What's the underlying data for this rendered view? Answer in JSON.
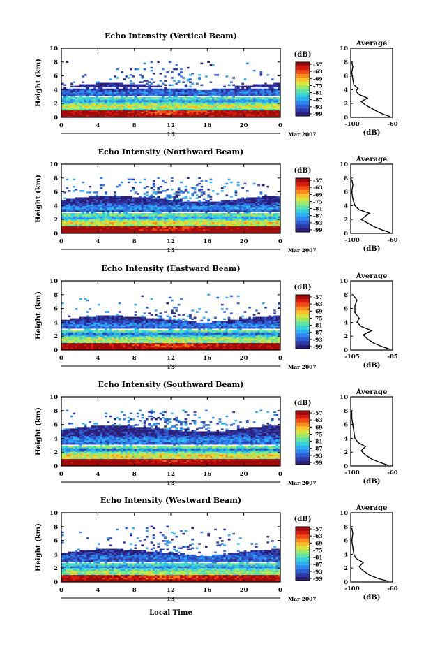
{
  "footer": {
    "xlabel": "Local Time"
  },
  "date_labels": {
    "day": "13",
    "month_year": "Mar 2007"
  },
  "colorbar": {
    "unit": "(dB)",
    "ticks": [
      "-57",
      "-63",
      "-69",
      "-75",
      "-81",
      "-87",
      "-93",
      "-99"
    ],
    "colors": [
      "#2b1f77",
      "#2e3aa8",
      "#2f5fd4",
      "#2e86ee",
      "#2cb0f2",
      "#35d2d8",
      "#5fe3a6",
      "#9ae86c",
      "#d6e43d",
      "#f9c02a",
      "#fb8a1e",
      "#f24b14",
      "#d61a10",
      "#a00c0c"
    ]
  },
  "chart_data": [
    {
      "type": "heatmap",
      "title": "Echo Intensity (Vertical Beam)",
      "xlabel": "",
      "ylabel": "Height (km)",
      "x_ticks": [
        "0",
        "4",
        "8",
        "12",
        "16",
        "20",
        "0"
      ],
      "y_ticks": [
        "0",
        "2",
        "4",
        "6",
        "8",
        "10"
      ],
      "xlim": [
        0,
        24
      ],
      "ylim": [
        0,
        10
      ],
      "value_unit": "(dB)",
      "value_range": [
        -99,
        -57
      ],
      "profile": {
        "title": "Average",
        "xlabel": "(dB)",
        "x_ticks": [
          "-100",
          "-60"
        ],
        "y_ticks": [
          "0",
          "2",
          "4",
          "6",
          "8",
          "10"
        ],
        "xlim": [
          -100,
          -60
        ],
        "ylim": [
          0,
          10
        ],
        "points": [
          [
            -62,
            0.1
          ],
          [
            -68,
            0.4
          ],
          [
            -74,
            0.8
          ],
          [
            -80,
            1.3
          ],
          [
            -86,
            1.8
          ],
          [
            -90,
            2.3
          ],
          [
            -84,
            2.8
          ],
          [
            -92,
            3.3
          ],
          [
            -95,
            3.8
          ],
          [
            -93,
            4.2
          ],
          [
            -97,
            4.7
          ],
          [
            -98,
            5.5
          ],
          [
            -99,
            6.5
          ],
          [
            -98,
            7.3
          ],
          [
            -99,
            8.0
          ]
        ]
      }
    },
    {
      "type": "heatmap",
      "title": "Echo Intensity (Northward Beam)",
      "xlabel": "",
      "ylabel": "Height (km)",
      "x_ticks": [
        "0",
        "4",
        "8",
        "12",
        "16",
        "20",
        "0"
      ],
      "y_ticks": [
        "0",
        "2",
        "4",
        "6",
        "8",
        "10"
      ],
      "xlim": [
        0,
        24
      ],
      "ylim": [
        0,
        10
      ],
      "value_unit": "(dB)",
      "value_range": [
        -99,
        -57
      ],
      "profile": {
        "title": "Average",
        "xlabel": "(dB)",
        "x_ticks": [
          "-100",
          "-60"
        ],
        "y_ticks": [
          "0",
          "2",
          "4",
          "6",
          "8",
          "10"
        ],
        "xlim": [
          -100,
          -60
        ],
        "ylim": [
          0,
          10
        ],
        "points": [
          [
            -62,
            0.1
          ],
          [
            -70,
            0.5
          ],
          [
            -78,
            1.0
          ],
          [
            -84,
            1.5
          ],
          [
            -90,
            2.0
          ],
          [
            -86,
            2.5
          ],
          [
            -82,
            2.9
          ],
          [
            -92,
            3.4
          ],
          [
            -96,
            4.0
          ],
          [
            -98,
            5.0
          ],
          [
            -99,
            6.0
          ],
          [
            -98,
            7.0
          ],
          [
            -99,
            7.8
          ]
        ]
      }
    },
    {
      "type": "heatmap",
      "title": "Echo Intensity (Eastward Beam)",
      "xlabel": "",
      "ylabel": "Height (km)",
      "x_ticks": [
        "0",
        "4",
        "8",
        "12",
        "16",
        "20",
        "0"
      ],
      "y_ticks": [
        "0",
        "2",
        "4",
        "6",
        "8",
        "10"
      ],
      "xlim": [
        0,
        24
      ],
      "ylim": [
        0,
        10
      ],
      "value_unit": "(dB)",
      "value_range": [
        -99,
        -57
      ],
      "profile": {
        "title": "Average",
        "xlabel": "(dB)",
        "x_ticks": [
          "-105",
          "-85"
        ],
        "y_ticks": [
          "0",
          "2",
          "4",
          "6",
          "8",
          "10"
        ],
        "xlim": [
          -105,
          -85
        ],
        "ylim": [
          0,
          10
        ],
        "points": [
          [
            -86,
            0.1
          ],
          [
            -90,
            0.5
          ],
          [
            -94,
            1.0
          ],
          [
            -97,
            1.6
          ],
          [
            -99,
            2.2
          ],
          [
            -95,
            2.8
          ],
          [
            -100,
            3.4
          ],
          [
            -102,
            4.0
          ],
          [
            -101,
            4.6
          ],
          [
            -103,
            5.4
          ],
          [
            -103,
            6.4
          ],
          [
            -102,
            7.2
          ],
          [
            -104,
            8.0
          ]
        ]
      }
    },
    {
      "type": "heatmap",
      "title": "Echo Intensity (Southward Beam)",
      "xlabel": "",
      "ylabel": "Height (km)",
      "x_ticks": [
        "0",
        "4",
        "8",
        "12",
        "16",
        "20",
        "0"
      ],
      "y_ticks": [
        "0",
        "2",
        "4",
        "6",
        "8",
        "10"
      ],
      "xlim": [
        0,
        24
      ],
      "ylim": [
        0,
        10
      ],
      "value_unit": "(dB)",
      "value_range": [
        -99,
        -57
      ],
      "profile": {
        "title": "Average",
        "xlabel": "(dB)",
        "x_ticks": [
          "-100",
          "-60"
        ],
        "y_ticks": [
          "0",
          "2",
          "4",
          "6",
          "8",
          "10"
        ],
        "xlim": [
          -100,
          -60
        ],
        "ylim": [
          0,
          10
        ],
        "points": [
          [
            -64,
            0.1
          ],
          [
            -72,
            0.5
          ],
          [
            -80,
            1.0
          ],
          [
            -86,
            1.6
          ],
          [
            -90,
            2.2
          ],
          [
            -86,
            2.8
          ],
          [
            -93,
            3.4
          ],
          [
            -96,
            4.0
          ],
          [
            -97,
            5.0
          ],
          [
            -98,
            6.0
          ],
          [
            -99,
            7.0
          ],
          [
            -99,
            8.0
          ]
        ]
      }
    },
    {
      "type": "heatmap",
      "title": "Echo Intensity (Westward Beam)",
      "xlabel": "",
      "ylabel": "Height (km)",
      "x_ticks": [
        "0",
        "4",
        "8",
        "12",
        "16",
        "20",
        "0"
      ],
      "y_ticks": [
        "0",
        "2",
        "4",
        "6",
        "8",
        "10"
      ],
      "xlim": [
        0,
        24
      ],
      "ylim": [
        0,
        10
      ],
      "value_unit": "(dB)",
      "value_range": [
        -99,
        -57
      ],
      "profile": {
        "title": "Average",
        "xlabel": "(dB)",
        "x_ticks": [
          "-100",
          "-60"
        ],
        "y_ticks": [
          "0",
          "2",
          "4",
          "6",
          "8",
          "10"
        ],
        "xlim": [
          -100,
          -60
        ],
        "ylim": [
          0,
          10
        ],
        "points": [
          [
            -64,
            0.1
          ],
          [
            -74,
            0.5
          ],
          [
            -82,
            1.0
          ],
          [
            -88,
            1.6
          ],
          [
            -92,
            2.2
          ],
          [
            -88,
            2.8
          ],
          [
            -95,
            3.4
          ],
          [
            -97,
            4.0
          ],
          [
            -98,
            5.0
          ],
          [
            -99,
            6.0
          ],
          [
            -98,
            7.0
          ],
          [
            -99,
            7.8
          ]
        ]
      }
    }
  ]
}
